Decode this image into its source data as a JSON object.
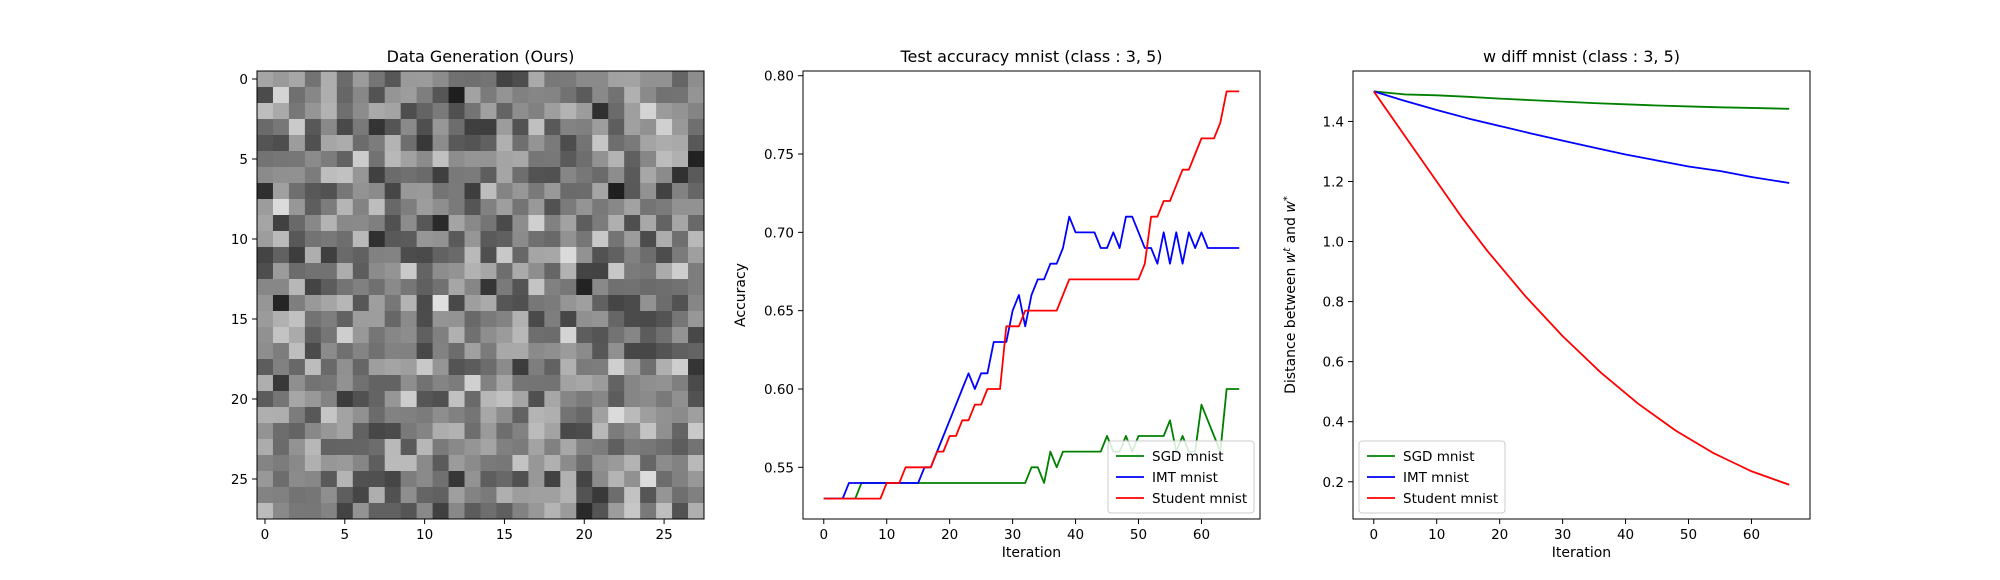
{
  "chart_data": [
    {
      "type": "heatmap",
      "title": "Data Generation (Ours)",
      "colormap": "gray",
      "rows": 28,
      "cols": 28,
      "xlim": [
        -0.5,
        27.5
      ],
      "ylim": [
        27.5,
        -0.5
      ],
      "xticks": [
        0,
        5,
        10,
        15,
        20,
        25
      ],
      "yticks": [
        0,
        5,
        10,
        15,
        20,
        25
      ],
      "vmin": 0,
      "vmax": 1,
      "matrix_seed": 12345
    },
    {
      "type": "line",
      "title": "Test accuracy mnist (class : 3, 5)",
      "xlabel": "Iteration",
      "ylabel": "Accuracy",
      "xlim": [
        -3.3,
        69.3
      ],
      "ylim": [
        0.517,
        0.803
      ],
      "xticks": [
        0,
        10,
        20,
        30,
        40,
        50,
        60
      ],
      "yticks": [
        0.55,
        0.6,
        0.65,
        0.7,
        0.75,
        0.8
      ],
      "ytick_labels": [
        "0.55",
        "0.60",
        "0.65",
        "0.70",
        "0.75",
        "0.80"
      ],
      "legend": "lower-right",
      "series": [
        {
          "name": "SGD mnist",
          "color": "#008000",
          "x": [
            0,
            1,
            2,
            3,
            4,
            5,
            6,
            7,
            8,
            9,
            10,
            11,
            12,
            13,
            14,
            15,
            16,
            17,
            18,
            19,
            20,
            21,
            22,
            23,
            24,
            25,
            26,
            27,
            28,
            29,
            30,
            31,
            32,
            33,
            34,
            35,
            36,
            37,
            38,
            39,
            40,
            41,
            42,
            43,
            44,
            45,
            46,
            47,
            48,
            49,
            50,
            51,
            52,
            53,
            54,
            55,
            56,
            57,
            58,
            59,
            60,
            61,
            62,
            63,
            64,
            65,
            66
          ],
          "y": [
            0.53,
            0.53,
            0.53,
            0.53,
            0.53,
            0.53,
            0.54,
            0.54,
            0.54,
            0.54,
            0.54,
            0.54,
            0.54,
            0.54,
            0.54,
            0.54,
            0.54,
            0.54,
            0.54,
            0.54,
            0.54,
            0.54,
            0.54,
            0.54,
            0.54,
            0.54,
            0.54,
            0.54,
            0.54,
            0.54,
            0.54,
            0.54,
            0.54,
            0.55,
            0.55,
            0.54,
            0.56,
            0.55,
            0.56,
            0.56,
            0.56,
            0.56,
            0.56,
            0.56,
            0.56,
            0.57,
            0.56,
            0.56,
            0.57,
            0.56,
            0.57,
            0.57,
            0.57,
            0.57,
            0.57,
            0.58,
            0.56,
            0.57,
            0.56,
            0.56,
            0.59,
            0.58,
            0.57,
            0.56,
            0.6,
            0.6,
            0.6
          ]
        },
        {
          "name": "IMT mnist",
          "color": "#0000ff",
          "x": [
            0,
            1,
            2,
            3,
            4,
            5,
            6,
            7,
            8,
            9,
            10,
            11,
            12,
            13,
            14,
            15,
            16,
            17,
            18,
            19,
            20,
            21,
            22,
            23,
            24,
            25,
            26,
            27,
            28,
            29,
            30,
            31,
            32,
            33,
            34,
            35,
            36,
            37,
            38,
            39,
            40,
            41,
            42,
            43,
            44,
            45,
            46,
            47,
            48,
            49,
            50,
            51,
            52,
            53,
            54,
            55,
            56,
            57,
            58,
            59,
            60,
            61,
            62,
            63,
            64,
            65,
            66
          ],
          "y": [
            0.53,
            0.53,
            0.53,
            0.53,
            0.54,
            0.54,
            0.54,
            0.54,
            0.54,
            0.54,
            0.54,
            0.54,
            0.54,
            0.54,
            0.54,
            0.54,
            0.55,
            0.55,
            0.56,
            0.57,
            0.58,
            0.59,
            0.6,
            0.61,
            0.6,
            0.61,
            0.61,
            0.63,
            0.63,
            0.63,
            0.65,
            0.66,
            0.64,
            0.66,
            0.67,
            0.67,
            0.68,
            0.68,
            0.69,
            0.71,
            0.7,
            0.7,
            0.7,
            0.7,
            0.69,
            0.69,
            0.7,
            0.69,
            0.71,
            0.71,
            0.7,
            0.69,
            0.69,
            0.68,
            0.7,
            0.68,
            0.7,
            0.68,
            0.7,
            0.69,
            0.7,
            0.69,
            0.69,
            0.69,
            0.69,
            0.69,
            0.69
          ]
        },
        {
          "name": "Student mnist",
          "color": "#ff0000",
          "x": [
            0,
            1,
            2,
            3,
            4,
            5,
            6,
            7,
            8,
            9,
            10,
            11,
            12,
            13,
            14,
            15,
            16,
            17,
            18,
            19,
            20,
            21,
            22,
            23,
            24,
            25,
            26,
            27,
            28,
            29,
            30,
            31,
            32,
            33,
            34,
            35,
            36,
            37,
            38,
            39,
            40,
            41,
            42,
            43,
            44,
            45,
            46,
            47,
            48,
            49,
            50,
            51,
            52,
            53,
            54,
            55,
            56,
            57,
            58,
            59,
            60,
            61,
            62,
            63,
            64,
            65,
            66
          ],
          "y": [
            0.53,
            0.53,
            0.53,
            0.53,
            0.53,
            0.53,
            0.53,
            0.53,
            0.53,
            0.53,
            0.54,
            0.54,
            0.54,
            0.55,
            0.55,
            0.55,
            0.55,
            0.55,
            0.56,
            0.56,
            0.57,
            0.57,
            0.58,
            0.58,
            0.59,
            0.59,
            0.6,
            0.6,
            0.6,
            0.64,
            0.64,
            0.64,
            0.65,
            0.65,
            0.65,
            0.65,
            0.65,
            0.65,
            0.66,
            0.67,
            0.67,
            0.67,
            0.67,
            0.67,
            0.67,
            0.67,
            0.67,
            0.67,
            0.67,
            0.67,
            0.67,
            0.68,
            0.71,
            0.71,
            0.72,
            0.72,
            0.73,
            0.74,
            0.74,
            0.75,
            0.76,
            0.76,
            0.76,
            0.77,
            0.79,
            0.79,
            0.79
          ]
        }
      ]
    },
    {
      "type": "line",
      "title": "w diff mnist (class : 3, 5)",
      "xlabel": "Iteration",
      "ylabel": "Distance between w^t and w^*",
      "xlim": [
        -3.3,
        69.3
      ],
      "ylim": [
        0.076,
        1.568
      ],
      "xticks": [
        0,
        10,
        20,
        30,
        40,
        50,
        60
      ],
      "yticks": [
        0.2,
        0.4,
        0.6,
        0.8,
        1.0,
        1.2,
        1.4
      ],
      "ytick_labels": [
        "0.2",
        "0.4",
        "0.6",
        "0.8",
        "1.0",
        "1.2",
        "1.4"
      ],
      "legend": "lower-left",
      "series": [
        {
          "name": "SGD mnist",
          "color": "#008000",
          "x": [
            0,
            5,
            10,
            15,
            20,
            25,
            30,
            35,
            40,
            45,
            50,
            55,
            60,
            66
          ],
          "y": [
            1.5,
            1.49,
            1.487,
            1.482,
            1.476,
            1.471,
            1.466,
            1.461,
            1.457,
            1.453,
            1.45,
            1.447,
            1.445,
            1.442
          ]
        },
        {
          "name": "IMT mnist",
          "color": "#0000ff",
          "x": [
            0,
            5,
            10,
            15,
            20,
            25,
            30,
            35,
            40,
            45,
            50,
            55,
            60,
            66
          ],
          "y": [
            1.5,
            1.468,
            1.438,
            1.41,
            1.385,
            1.36,
            1.336,
            1.313,
            1.29,
            1.27,
            1.25,
            1.235,
            1.215,
            1.195
          ]
        },
        {
          "name": "Student mnist",
          "color": "#ff0000",
          "x": [
            0,
            2,
            4,
            6,
            8,
            10,
            12,
            14,
            16,
            18,
            20,
            22,
            24,
            26,
            28,
            30,
            32,
            34,
            36,
            38,
            40,
            42,
            44,
            46,
            48,
            50,
            52,
            54,
            56,
            58,
            60,
            62,
            64,
            66
          ],
          "y": [
            1.5,
            1.44,
            1.38,
            1.32,
            1.26,
            1.2,
            1.14,
            1.08,
            1.025,
            0.97,
            0.92,
            0.87,
            0.82,
            0.775,
            0.73,
            0.685,
            0.645,
            0.605,
            0.565,
            0.53,
            0.495,
            0.46,
            0.43,
            0.4,
            0.37,
            0.345,
            0.32,
            0.295,
            0.275,
            0.255,
            0.235,
            0.22,
            0.205,
            0.19
          ]
        }
      ]
    }
  ]
}
